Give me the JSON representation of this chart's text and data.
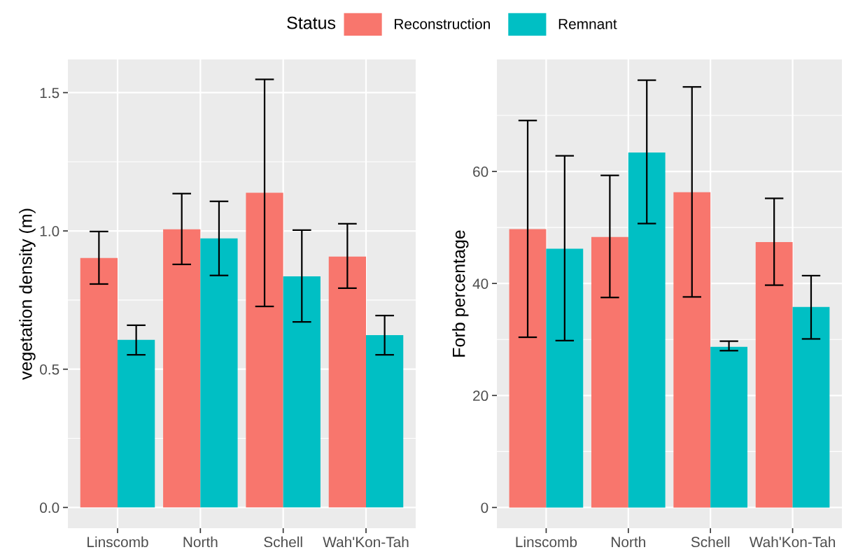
{
  "chart_data": [
    {
      "type": "bar",
      "ylabel": "vegetation density (m)",
      "categories": [
        "Linscomb",
        "North",
        "Schell",
        "Wah'Kon-Tah"
      ],
      "ylim": [
        -0.075,
        1.62
      ],
      "yticks": [
        {
          "value": 0,
          "label": "0.0"
        },
        0.5,
        {
          "value": 1,
          "label": "1.0"
        },
        1.5
      ],
      "grid": true,
      "legend": "top",
      "legend_title": "Status",
      "series": [
        {
          "name": "Reconstruction",
          "color": "#f8766d",
          "values": [
            0.902,
            1.006,
            1.138,
            0.907
          ],
          "errors": [
            [
              0.808,
              0.998
            ],
            [
              0.879,
              1.135
            ],
            [
              0.727,
              1.548
            ],
            [
              0.793,
              1.026
            ]
          ]
        },
        {
          "name": "Remnant",
          "color": "#00bfc4",
          "values": [
            0.606,
            0.973,
            0.836,
            0.623
          ],
          "errors": [
            [
              0.552,
              0.659
            ],
            [
              0.839,
              1.107
            ],
            [
              0.671,
              1.003
            ],
            [
              0.552,
              0.694
            ]
          ]
        }
      ]
    },
    {
      "type": "bar",
      "ylabel": "Forb percentage",
      "categories": [
        "Linscomb",
        "North",
        "Schell",
        "Wah'Kon-Tah"
      ],
      "ylim": [
        -3.7,
        80
      ],
      "yticks": [
        0,
        20,
        40,
        60
      ],
      "grid": true,
      "series": [
        {
          "name": "Reconstruction",
          "color": "#f8766d",
          "values": [
            49.7,
            48.3,
            56.3,
            47.4
          ],
          "errors": [
            [
              30.4,
              69.1
            ],
            [
              37.5,
              59.3
            ],
            [
              37.6,
              75.1
            ],
            [
              39.7,
              55.2
            ]
          ]
        },
        {
          "name": "Remnant",
          "color": "#00bfc4",
          "values": [
            46.2,
            63.4,
            28.7,
            35.8
          ],
          "errors": [
            [
              29.8,
              62.8
            ],
            [
              50.7,
              76.3
            ],
            [
              28.0,
              29.7
            ],
            [
              30.1,
              41.4
            ]
          ]
        }
      ]
    }
  ]
}
